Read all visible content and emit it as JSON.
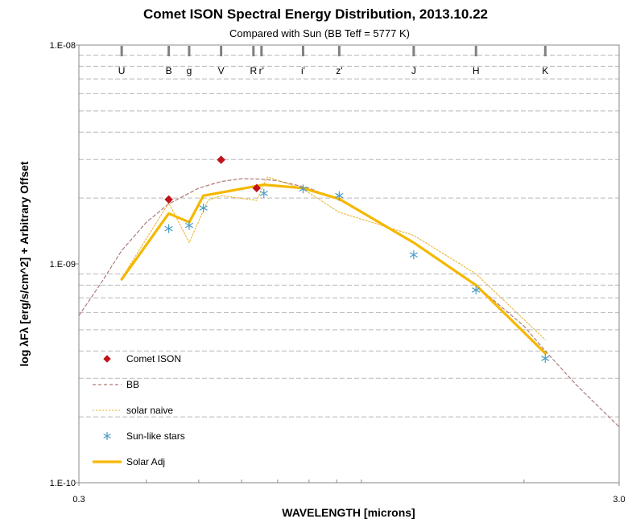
{
  "chart_data": {
    "type": "line",
    "title": "Comet ISON Spectral Energy Distribution, 2013.10.22",
    "subtitle": "Compared with Sun (BB Teff = 5777 K)",
    "xlabel": "WAVELENGTH [microns]",
    "ylabel": "log λFλ [erg/s/cm^2] + Arbitrary Offset",
    "x_scale": "log",
    "y_scale": "log",
    "xlim": [
      0.3,
      3.0
    ],
    "ylim": [
      1e-10,
      1e-08
    ],
    "x_tick_labels": [
      {
        "value": 0.3,
        "label": "0.3"
      },
      {
        "value": 3.0,
        "label": "3.0"
      }
    ],
    "y_tick_labels": [
      {
        "value": 1e-08,
        "label": "1.E-08"
      },
      {
        "value": 1e-09,
        "label": "1.E-09"
      },
      {
        "value": 1e-10,
        "label": "1.E-10"
      }
    ],
    "grid": "horizontal dashed at minor decades",
    "legend_position": "lower-left inside plot",
    "bands": [
      {
        "label": "U",
        "x": 0.36
      },
      {
        "label": "B",
        "x": 0.44
      },
      {
        "label": "g",
        "x": 0.48
      },
      {
        "label": "V",
        "x": 0.55
      },
      {
        "label": "R",
        "x": 0.64
      },
      {
        "label": "r'",
        "x": 0.64
      },
      {
        "label": "i'",
        "x": 0.78
      },
      {
        "label": "z'",
        "x": 0.91
      },
      {
        "label": "J",
        "x": 1.25
      },
      {
        "label": "H",
        "x": 1.63
      },
      {
        "label": "K",
        "x": 2.19
      }
    ],
    "series": [
      {
        "name": "Comet ISON",
        "kind": "marker",
        "marker": "diamond",
        "color": "#c0141c",
        "x": [
          0.44,
          0.55,
          0.64
        ],
        "y": [
          1.97e-09,
          2.99e-09,
          2.22e-09
        ]
      },
      {
        "name": "BB",
        "kind": "line",
        "style": "dashed",
        "color": "#b07a7a",
        "x": [
          0.3,
          0.33,
          0.36,
          0.4,
          0.44,
          0.5,
          0.55,
          0.6,
          0.65,
          0.7,
          0.8,
          0.9,
          1.0,
          1.25,
          1.5,
          1.63,
          2.0,
          2.19,
          2.5,
          3.0
        ],
        "y": [
          5.8e-10,
          8.2e-10,
          1.15e-09,
          1.55e-09,
          1.88e-09,
          2.22e-09,
          2.38e-09,
          2.45e-09,
          2.44e-09,
          2.4e-09,
          2.22e-09,
          1.98e-09,
          1.74e-09,
          1.24e-09,
          9.3e-10,
          8e-10,
          5.2e-10,
          4e-10,
          2.8e-10,
          1.8e-10
        ]
      },
      {
        "name": "solar naive",
        "kind": "line",
        "style": "dotted",
        "color": "#e8b020",
        "x": [
          0.36,
          0.44,
          0.48,
          0.52,
          0.55,
          0.64,
          0.67,
          0.78,
          0.91,
          1.25,
          1.63,
          2.19
        ],
        "y": [
          8.6e-10,
          1.9e-09,
          1.25e-09,
          1.95e-09,
          2.05e-09,
          1.95e-09,
          2.5e-09,
          2.2e-09,
          1.72e-09,
          1.35e-09,
          9e-10,
          4.5e-10
        ]
      },
      {
        "name": "Sun-like stars",
        "kind": "marker",
        "marker": "asterisk",
        "color": "#4a9cc4",
        "x": [
          0.44,
          0.48,
          0.51,
          0.66,
          0.78,
          0.91,
          1.25,
          1.63,
          2.19
        ],
        "y": [
          1.45e-09,
          1.5e-09,
          1.8e-09,
          2.1e-09,
          2.2e-09,
          2.05e-09,
          1.1e-09,
          7.6e-10,
          3.7e-10
        ]
      },
      {
        "name": "Solar Adj",
        "kind": "line",
        "style": "solid-thick",
        "color": "#f5b800",
        "x": [
          0.36,
          0.44,
          0.48,
          0.51,
          0.66,
          0.78,
          0.91,
          1.25,
          1.63,
          2.19
        ],
        "y": [
          8.5e-10,
          1.7e-09,
          1.55e-09,
          2.05e-09,
          2.3e-09,
          2.22e-09,
          1.98e-09,
          1.25e-09,
          8e-10,
          3.9e-10
        ]
      }
    ]
  }
}
